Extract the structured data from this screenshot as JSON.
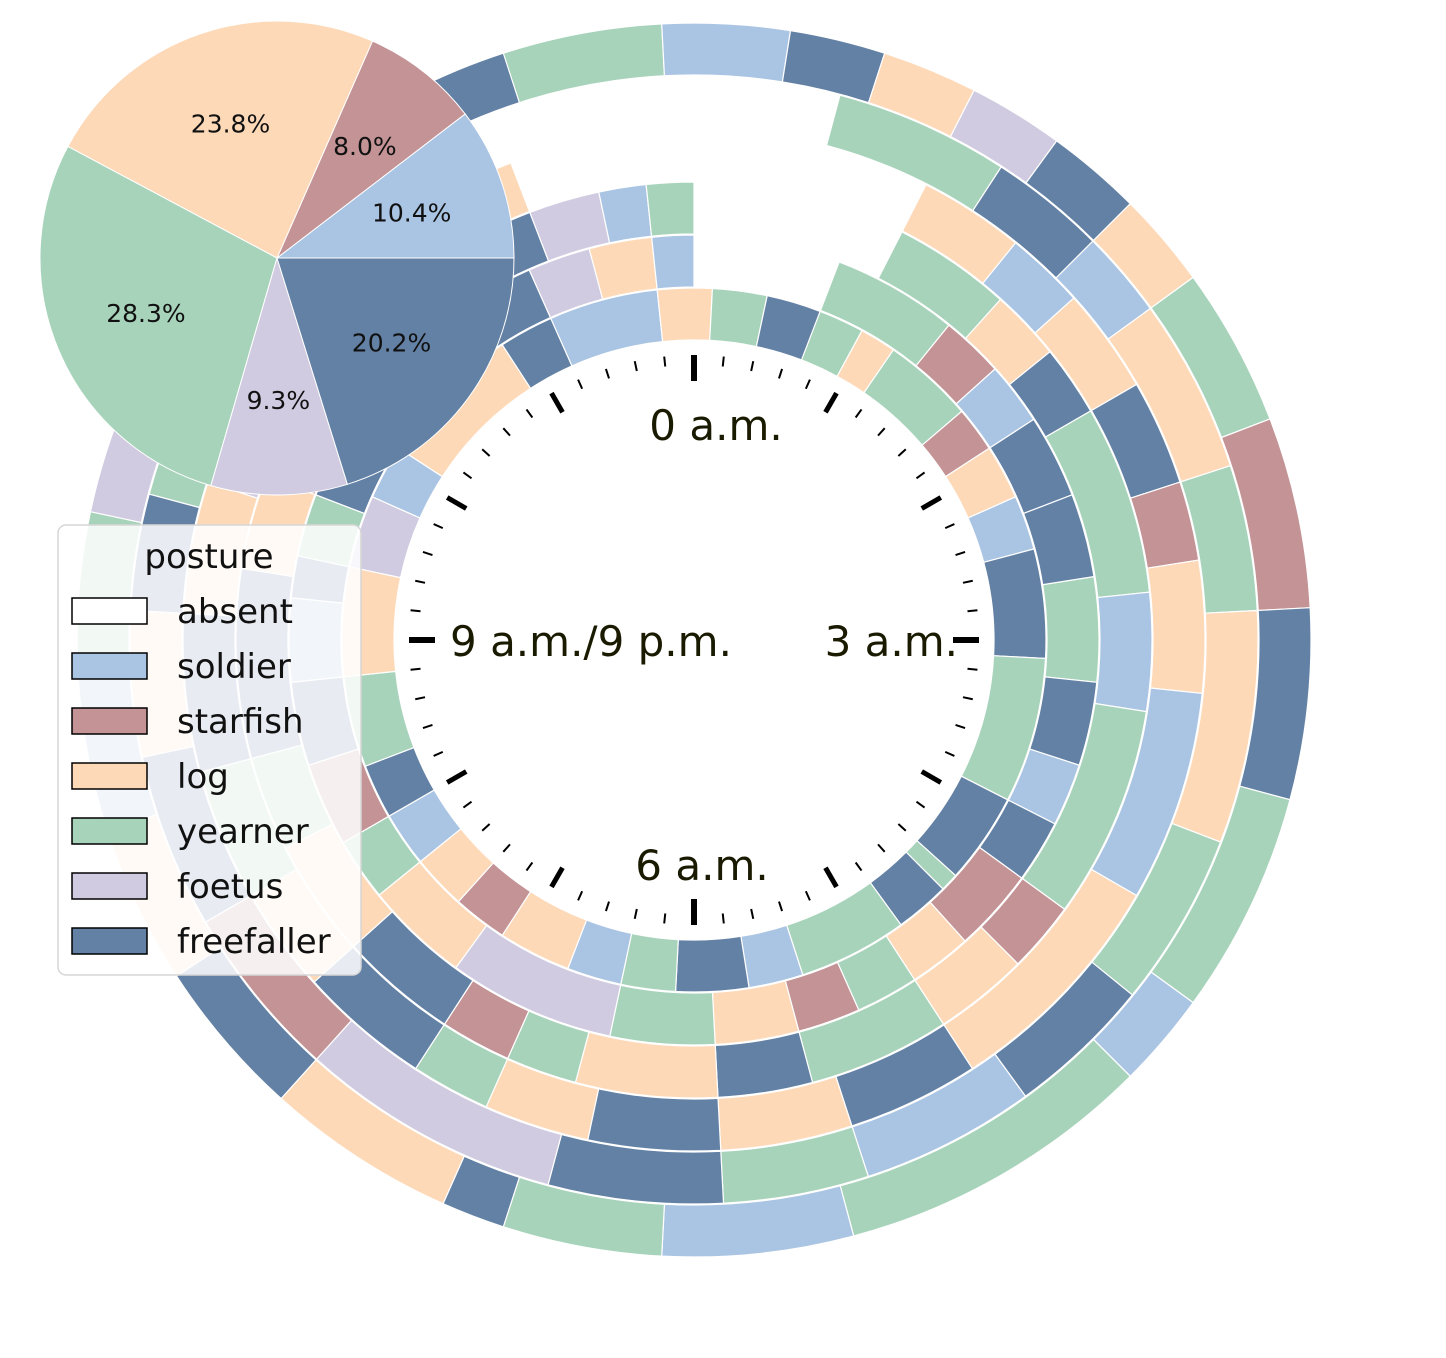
{
  "chart_data": [
    {
      "type": "pie",
      "slices": [
        {
          "label": "soldier",
          "value": 10.4,
          "text": "10.4%",
          "color": "#aac4e3"
        },
        {
          "label": "starfish",
          "value": 8.0,
          "text": "8.0%",
          "color": "#c39396"
        },
        {
          "label": "log",
          "value": 23.8,
          "text": "23.8%",
          "color": "#fdd9b8"
        },
        {
          "label": "yearner",
          "value": 28.3,
          "text": "28.3%",
          "color": "#a8d3bb"
        },
        {
          "label": "foetus",
          "value": 9.3,
          "text": "9.3%",
          "color": "#d0cbe0"
        },
        {
          "label": "freefaller",
          "value": 20.2,
          "text": "20.2%",
          "color": "#6381a5"
        }
      ]
    },
    {
      "type": "radial-timeline",
      "clock_labels": {
        "top": "0 a.m.",
        "right": "3 a.m.",
        "bottom": "6 a.m.",
        "left": "9 a.m./9 p.m."
      },
      "hours_per_revolution": 12,
      "rings": [
        {
          "night": 1,
          "start_h": 0.3,
          "segments": [
            [
              "log",
              0.15
            ],
            [
              "foetus",
              0.1
            ],
            [
              "yearner",
              0.4
            ],
            [
              "log",
              0.2
            ],
            [
              "yearner",
              0.5
            ],
            [
              "starfish",
              0.25
            ],
            [
              "log",
              0.3
            ],
            [
              "soldier",
              0.3
            ],
            [
              "freefaller",
              0.6
            ],
            [
              "yearner",
              0.8
            ],
            [
              "freefaller",
              0.5
            ],
            [
              "yearner",
              0.1
            ],
            [
              "freefaller",
              0.3
            ],
            [
              "yearner",
              0.6
            ],
            [
              "soldier",
              0.3
            ],
            [
              "freefaller",
              0.4
            ],
            [
              "yearner",
              0.3
            ],
            [
              "soldier",
              0.3
            ],
            [
              "log",
              0.4
            ],
            [
              "starfish",
              0.3
            ],
            [
              "log",
              0.3
            ],
            [
              "soldier",
              0.3
            ],
            [
              "freefaller",
              0.3
            ],
            [
              "yearner",
              0.5
            ],
            [
              "log",
              0.6
            ],
            [
              "foetus",
              0.4
            ],
            [
              "soldier",
              0.3
            ],
            [
              "log",
              0.8
            ],
            [
              "freefaller",
              0.3
            ],
            [
              "soldier",
              0.6
            ],
            [
              "log",
              0.3
            ],
            [
              "yearner",
              0.3
            ],
            [
              "freefaller",
              0.3
            ]
          ]
        },
        {
          "night": 2,
          "start_h": 0.7,
          "segments": [
            [
              "yearner",
              0.6
            ],
            [
              "starfish",
              0.3
            ],
            [
              "soldier",
              0.3
            ],
            [
              "freefaller",
              0.4
            ],
            [
              "freefaller",
              0.4
            ],
            [
              "yearner",
              0.5
            ],
            [
              "freefaller",
              0.4
            ],
            [
              "soldier",
              0.3
            ],
            [
              "freefaller",
              0.3
            ],
            [
              "starfish",
              0.4
            ],
            [
              "log",
              0.3
            ],
            [
              "yearner",
              0.3
            ],
            [
              "starfish",
              0.3
            ],
            [
              "log",
              0.4
            ],
            [
              "yearner",
              0.5
            ],
            [
              "foetus",
              0.8
            ],
            [
              "log",
              0.5
            ],
            [
              "yearner",
              0.3
            ],
            [
              "starfish",
              0.4
            ],
            [
              "freefaller",
              0.4
            ],
            [
              "soldier",
              0.4
            ],
            [
              "freefaller",
              0.2
            ],
            [
              "yearner",
              0.3
            ],
            [
              "freefaller",
              0.3
            ],
            [
              "soldier",
              0.3
            ],
            [
              "log",
              0.5
            ],
            [
              "freefaller",
              0.4
            ],
            [
              "foetus",
              0.3
            ],
            [
              "log",
              0.3
            ],
            [
              "soldier",
              0.2
            ]
          ]
        },
        {
          "night": 3,
          "start_h": 0.9,
          "segments": [
            [
              "yearner",
              0.5
            ],
            [
              "log",
              0.3
            ],
            [
              "freefaller",
              0.3
            ],
            [
              "yearner",
              0.8
            ],
            [
              "soldier",
              0.5
            ],
            [
              "yearner",
              0.9
            ],
            [
              "starfish",
              0.3
            ],
            [
              "log",
              0.4
            ],
            [
              "yearner",
              0.6
            ],
            [
              "freefaller",
              0.4
            ],
            [
              "log",
              0.6
            ],
            [
              "yearner",
              0.3
            ],
            [
              "starfish",
              0.3
            ],
            [
              "freefaller",
              0.5
            ],
            [
              "log",
              0.5
            ],
            [
              "yearner",
              0.4
            ],
            [
              "freefaller",
              0.8
            ],
            [
              "log",
              0.4
            ],
            [
              "starfish",
              0.2
            ],
            [
              "foetus",
              0.6
            ],
            [
              "log",
              0.4
            ],
            [
              "freefaller",
              0.4
            ],
            [
              "foetus",
              0.3
            ],
            [
              "soldier",
              0.2
            ],
            [
              "yearner",
              0.2
            ]
          ]
        },
        {
          "night": 4,
          "start_h": 0.9,
          "segments": [
            [
              "log",
              0.4
            ],
            [
              "soldier",
              0.3
            ],
            [
              "log",
              0.4
            ],
            [
              "freefaller",
              0.4
            ],
            [
              "starfish",
              0.3
            ],
            [
              "log",
              0.5
            ],
            [
              "soldier",
              0.8
            ],
            [
              "log",
              0.9
            ],
            [
              "freefaller",
              0.5
            ],
            [
              "log",
              0.5
            ],
            [
              "freefaller",
              0.5
            ],
            [
              "log",
              0.4
            ],
            [
              "yearner",
              0.3
            ],
            [
              "freefaller",
              0.5
            ],
            [
              "log",
              0.4
            ],
            [
              "yearner",
              0.5
            ],
            [
              "freefaller",
              0.6
            ],
            [
              "log",
              0.5
            ],
            [
              "foetus",
              0.4
            ],
            [
              "log",
              0.4
            ],
            [
              "freefaller",
              0.3
            ],
            [
              "starfish",
              0.3
            ],
            [
              "log",
              0.3
            ]
          ]
        },
        {
          "night": 5,
          "start_h": 0.5,
          "segments": [
            [
              "yearner",
              0.6
            ],
            [
              "freefaller",
              0.4
            ],
            [
              "soldier",
              0.3
            ],
            [
              "log",
              0.6
            ],
            [
              "yearner",
              0.5
            ],
            [
              "log",
              0.8
            ],
            [
              "yearner",
              0.6
            ],
            [
              "freefaller",
              0.5
            ],
            [
              "soldier",
              0.6
            ],
            [
              "yearner",
              0.5
            ],
            [
              "freefaller",
              0.6
            ],
            [
              "foetus",
              0.9
            ],
            [
              "starfish",
              0.6
            ],
            [
              "freefaller",
              0.6
            ],
            [
              "log",
              0.5
            ],
            [
              "freefaller",
              0.4
            ],
            [
              "yearner",
              0.3
            ],
            [
              "foetus",
              0.3
            ],
            [
              "log",
              0.3
            ]
          ]
        },
        {
          "night": 6,
          "start_h": -0.9,
          "segments": [
            [
              "yearner",
              0.8
            ],
            [
              "soldier",
              0.4
            ],
            [
              "freefaller",
              0.3
            ],
            [
              "log",
              0.3
            ],
            [
              "foetus",
              0.3
            ],
            [
              "freefaller",
              0.3
            ],
            [
              "log",
              0.3
            ],
            [
              "yearner",
              0.5
            ],
            [
              "starfish",
              0.6
            ],
            [
              "freefaller",
              0.6
            ],
            [
              "yearner",
              0.7
            ],
            [
              "soldier",
              0.3
            ],
            [
              "yearner",
              1.0
            ],
            [
              "soldier",
              0.6
            ],
            [
              "yearner",
              0.5
            ],
            [
              "freefaller",
              0.2
            ],
            [
              "log",
              0.6
            ],
            [
              "freefaller",
              0.5
            ],
            [
              "log",
              0.5
            ],
            [
              "soldier",
              0.5
            ],
            [
              "yearner",
              0.5
            ],
            [
              "foetus",
              0.6
            ],
            [
              "starfish",
              0.8
            ],
            [
              "log",
              0.3
            ],
            [
              "freefaller",
              0.3
            ]
          ]
        }
      ]
    }
  ],
  "legend": {
    "title": "posture",
    "items": [
      {
        "label": "absent",
        "color": "#ffffff"
      },
      {
        "label": "soldier",
        "color": "#aac4e3"
      },
      {
        "label": "starfish",
        "color": "#c39396"
      },
      {
        "label": "log",
        "color": "#fdd9b8"
      },
      {
        "label": "yearner",
        "color": "#a8d3bb"
      },
      {
        "label": "foetus",
        "color": "#d0cbe0"
      },
      {
        "label": "freefaller",
        "color": "#6381a5"
      }
    ]
  }
}
